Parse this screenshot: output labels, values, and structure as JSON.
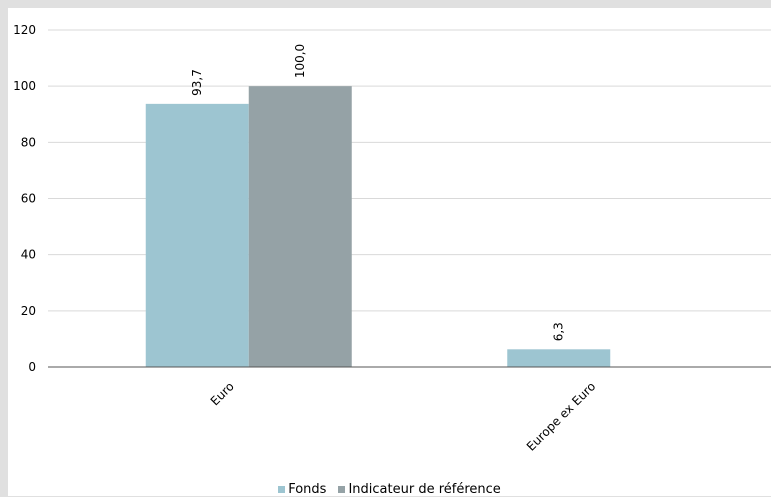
{
  "chart_data": {
    "type": "bar",
    "categories": [
      "Euro",
      "Europe ex Euro"
    ],
    "series": [
      {
        "name": "Fonds",
        "values": [
          93.7,
          6.3
        ],
        "labels": [
          "93,7",
          "6,3"
        ],
        "color": "#9dc5d1"
      },
      {
        "name": "Indicateur de référence",
        "values": [
          100.0,
          null
        ],
        "labels": [
          "100,0",
          ""
        ],
        "color": "#95a2a6"
      }
    ],
    "ylim": [
      0,
      120
    ],
    "yticks": [
      0,
      20,
      40,
      60,
      80,
      100,
      120
    ],
    "grid": true,
    "legend_position": "bottom"
  }
}
